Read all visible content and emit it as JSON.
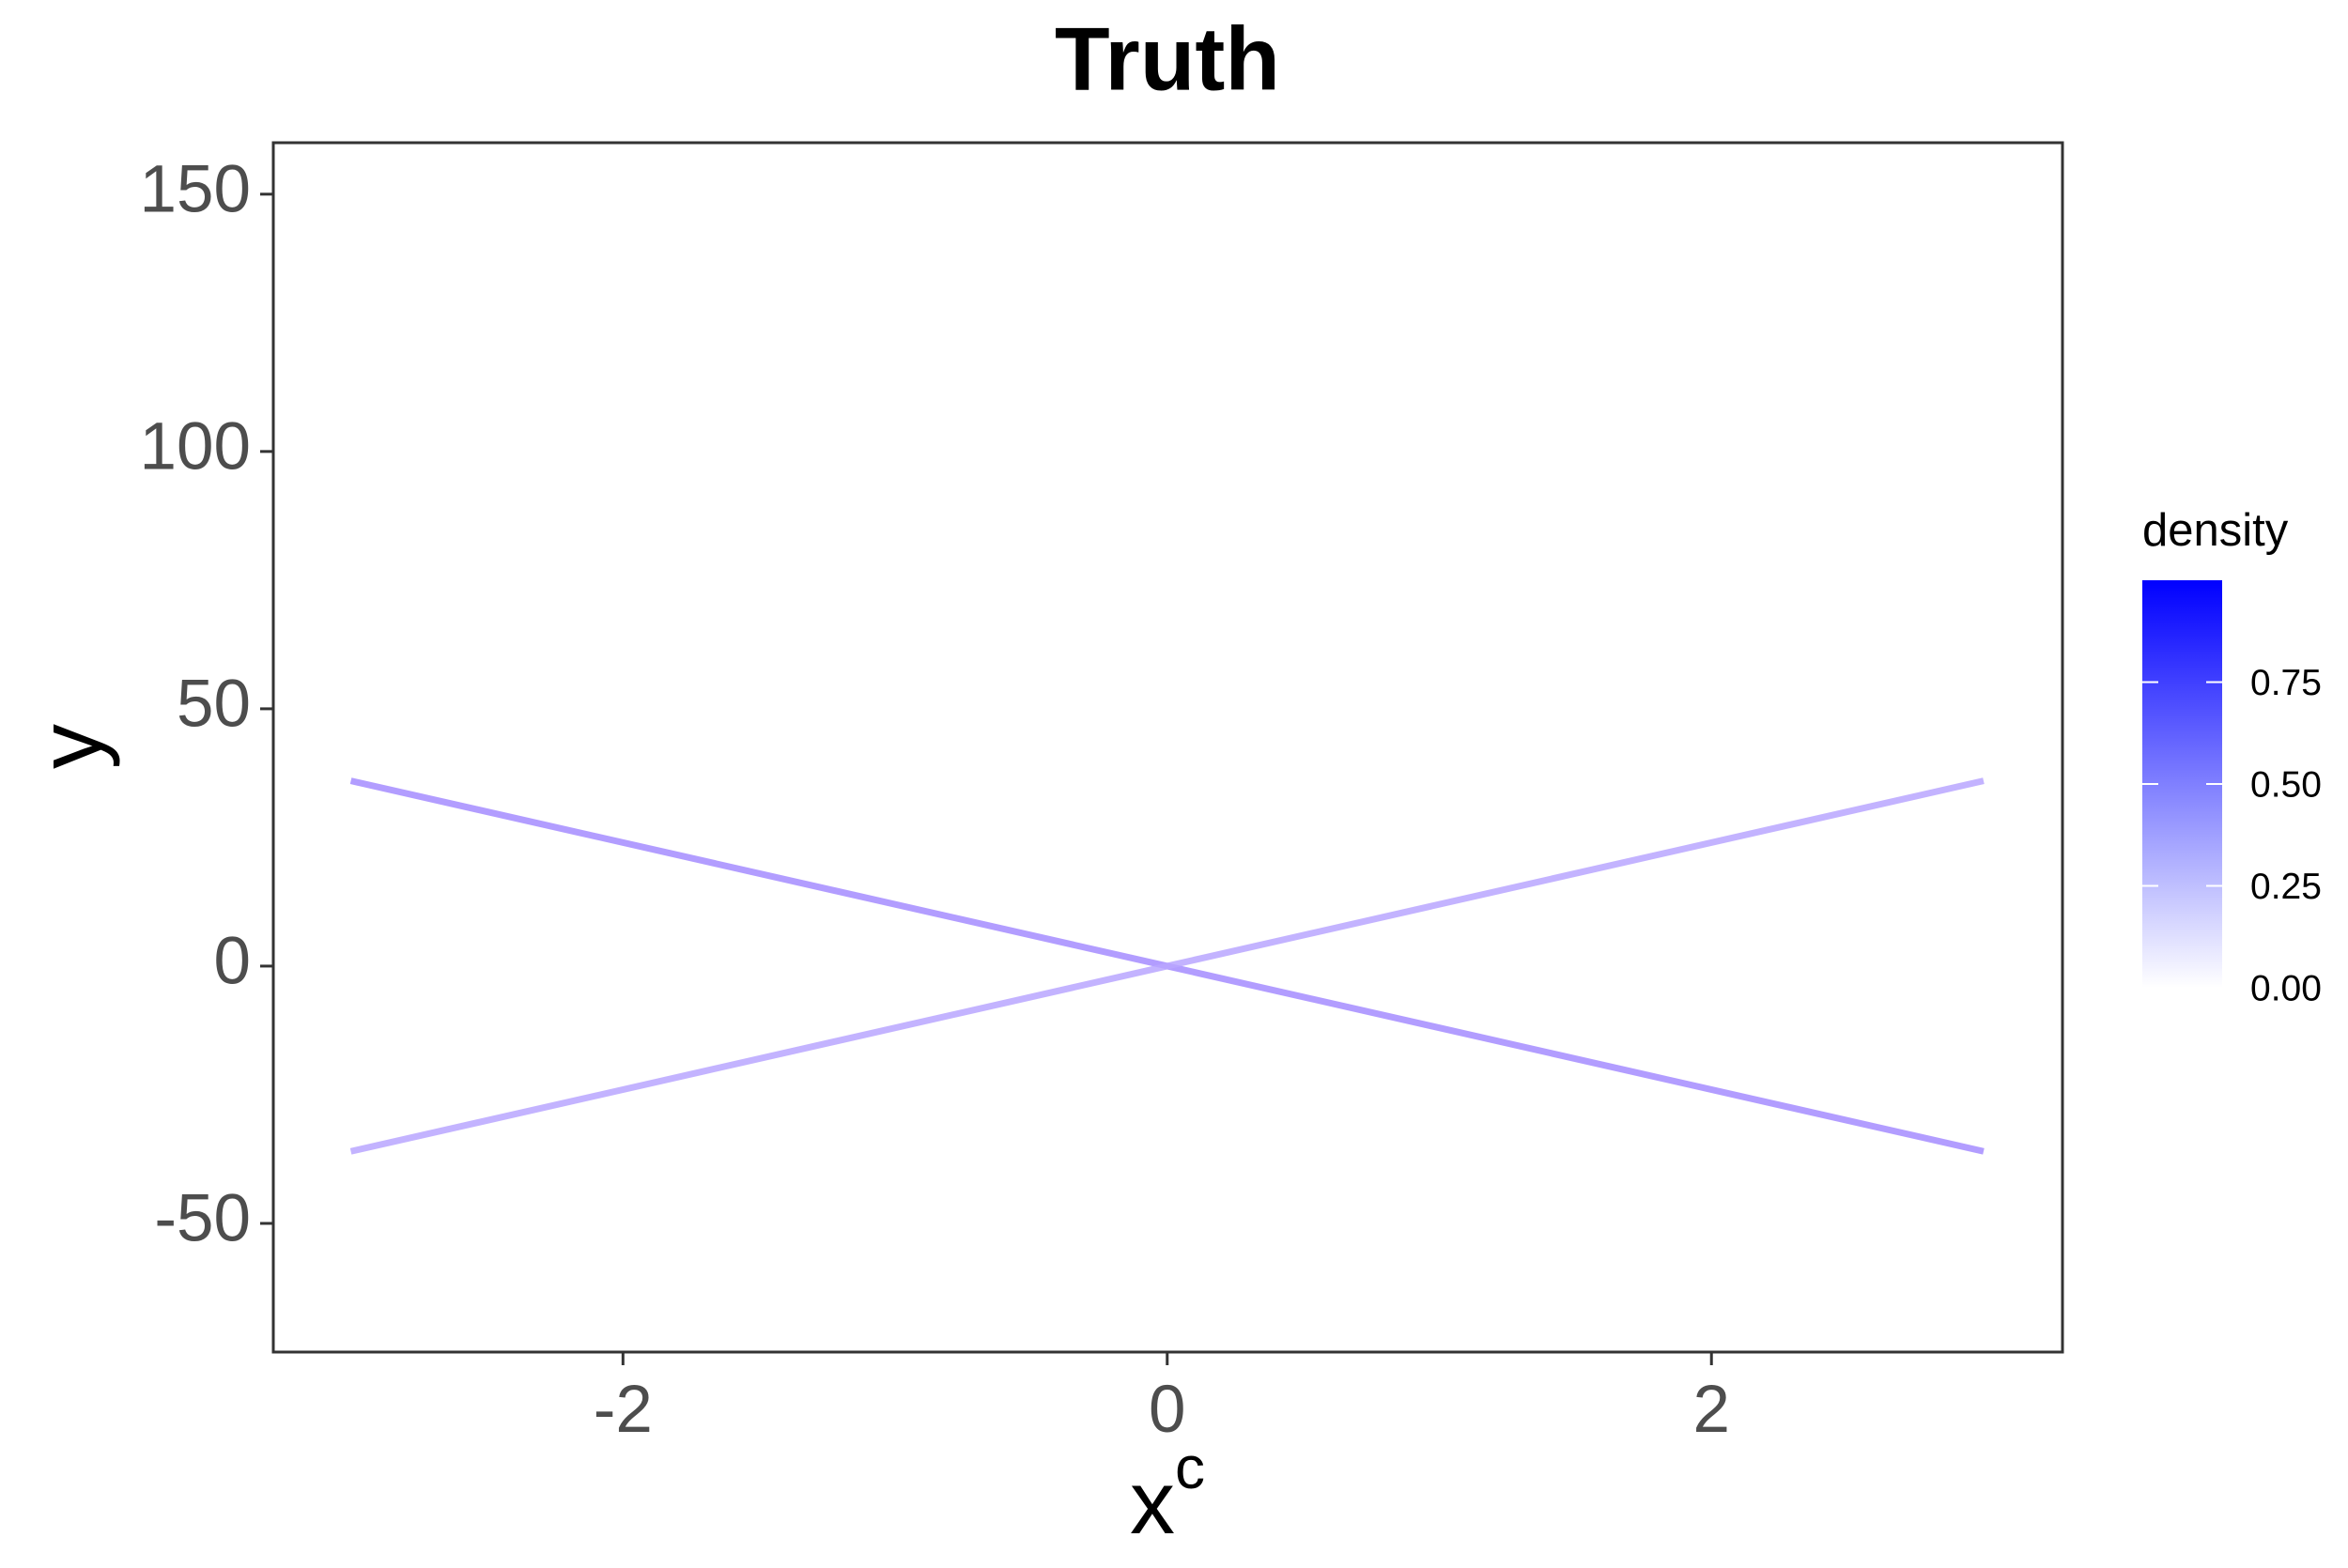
{
  "chart_data": {
    "type": "line",
    "title": "Truth",
    "xlabel": "x",
    "xlabel_sup": "c",
    "ylabel": "y",
    "series": [
      {
        "color": "#a48cff",
        "x": [
          -3,
          0,
          3
        ],
        "values": [
          36,
          0,
          -36
        ]
      },
      {
        "color": "#b8a6ff",
        "x": [
          -3,
          0,
          3
        ],
        "values": [
          -36,
          0,
          36
        ]
      }
    ],
    "xlim": [
      -3.285,
      3.29
    ],
    "xticks": [
      -2,
      0,
      2
    ],
    "ylim": [
      -75,
      160
    ],
    "yticks": [
      -50,
      0,
      50,
      100,
      150
    ],
    "grid": false,
    "colorbar": {
      "title": "density",
      "lim": [
        0,
        1
      ],
      "colors": [
        "#ffffff",
        "#0000ff"
      ],
      "ticks": [
        {
          "value": 0,
          "label": "0.00"
        },
        {
          "value": 0.25,
          "label": "0.25"
        },
        {
          "value": 0.5,
          "label": "0.50"
        },
        {
          "value": 0.75,
          "label": "0.75"
        }
      ]
    }
  }
}
